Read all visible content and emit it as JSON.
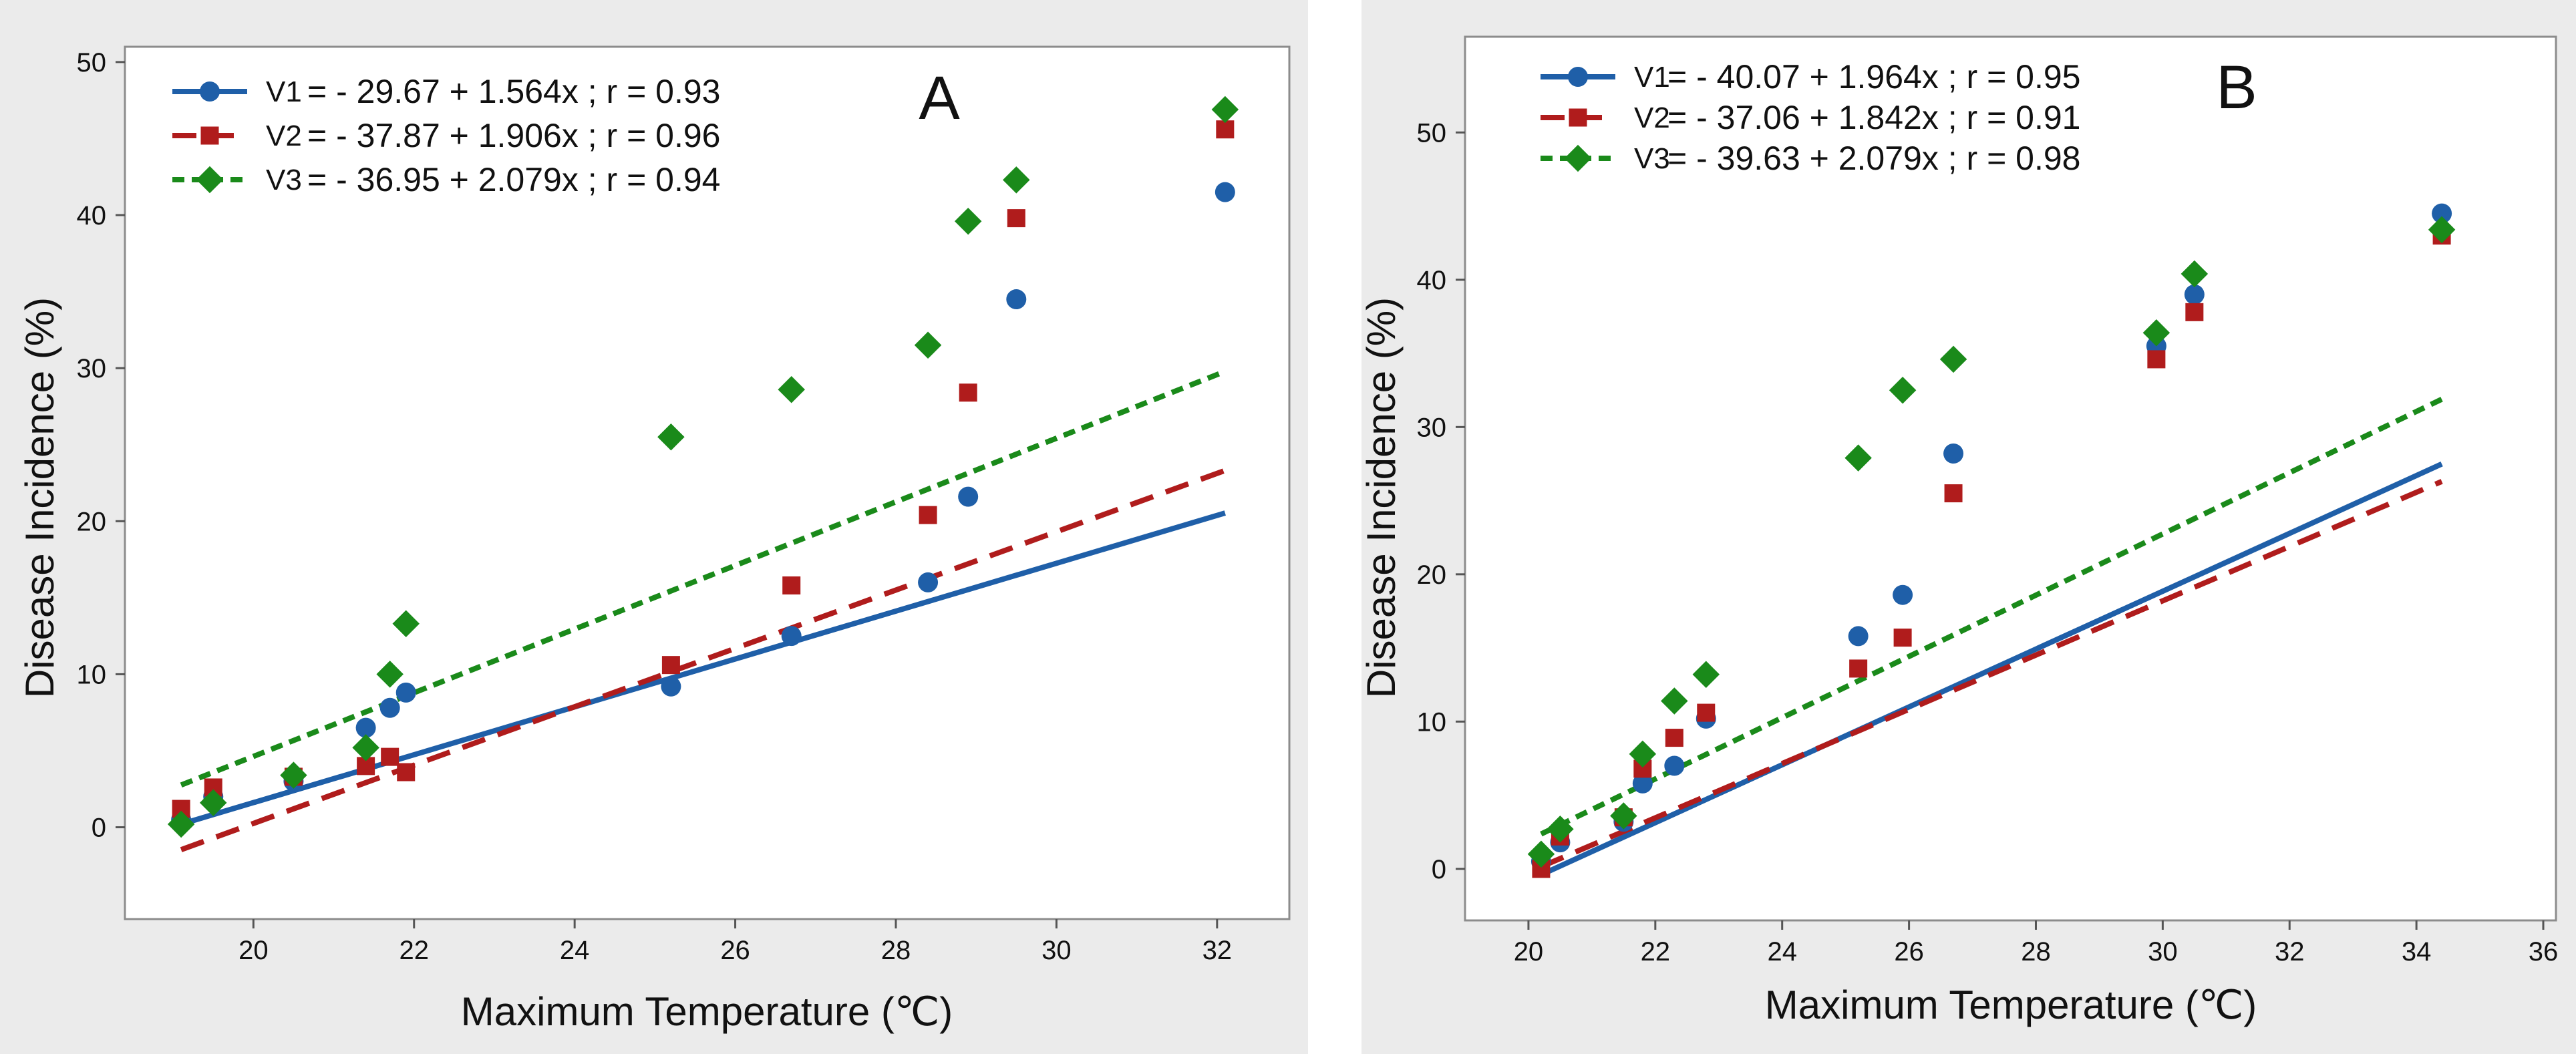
{
  "chart_data": [
    {
      "type": "scatter",
      "panel_label": "A",
      "xlabel": "Maximum Temperature (℃)",
      "ylabel": "Disease Incidence (%)",
      "xlim": [
        18.4,
        32.9
      ],
      "ylim": [
        -6,
        51
      ],
      "xticks": [
        20,
        22,
        24,
        26,
        28,
        30,
        32
      ],
      "yticks": [
        0,
        10,
        20,
        30,
        40,
        50
      ],
      "grid": false,
      "legend_position": "top-left",
      "series": [
        {
          "name": "V1",
          "equation": "= - 29.67 + 1.564x ; r = 0.93",
          "intercept": -29.67,
          "slope": 1.564,
          "color": "#1f5fa8",
          "marker": "circle",
          "line_style": "solid",
          "fit_range": [
            19.1,
            32.1
          ],
          "x": [
            19.1,
            19.5,
            20.5,
            21.4,
            21.7,
            21.9,
            25.2,
            26.7,
            28.4,
            28.9,
            29.5,
            32.1
          ],
          "y": [
            0.5,
            2.0,
            3.0,
            6.5,
            7.8,
            8.8,
            9.2,
            12.5,
            16.0,
            21.6,
            34.5,
            41.5
          ]
        },
        {
          "name": "V2",
          "equation": "= - 37.87 + 1.906x ; r = 0.96",
          "intercept": -37.87,
          "slope": 1.906,
          "color": "#b01c1c",
          "marker": "square",
          "line_style": "dashed",
          "fit_range": [
            19.1,
            32.1
          ],
          "x": [
            19.1,
            19.5,
            20.5,
            21.4,
            21.7,
            21.9,
            25.2,
            26.7,
            28.4,
            28.9,
            29.5,
            32.1
          ],
          "y": [
            1.2,
            2.6,
            3.3,
            4.0,
            4.6,
            3.6,
            10.6,
            15.8,
            20.4,
            28.4,
            39.8,
            45.6
          ]
        },
        {
          "name": "V3",
          "equation": "= - 36.95 + 2.079x ; r = 0.94",
          "intercept": -36.95,
          "slope": 2.079,
          "color": "#1a8a1a",
          "marker": "diamond",
          "line_style": "dotted",
          "fit_range": [
            19.1,
            32.1
          ],
          "x": [
            19.1,
            19.5,
            20.5,
            21.4,
            21.7,
            21.9,
            25.2,
            26.7,
            28.4,
            28.9,
            29.5,
            32.1
          ],
          "y": [
            0.2,
            1.6,
            3.4,
            5.2,
            10.0,
            13.3,
            25.5,
            28.6,
            31.5,
            39.6,
            42.3,
            46.9
          ]
        }
      ]
    },
    {
      "type": "scatter",
      "panel_label": "B",
      "xlabel": "Maximum Temperature (℃)",
      "ylabel": "Disease Incidence (%)",
      "xlim": [
        19.0,
        36.2
      ],
      "ylim": [
        -3.5,
        56.5
      ],
      "xticks": [
        20,
        22,
        24,
        26,
        28,
        30,
        32,
        34,
        36
      ],
      "yticks": [
        0,
        10,
        20,
        30,
        40,
        50
      ],
      "grid": false,
      "legend_position": "top-left",
      "series": [
        {
          "name": "V1",
          "equation": "= - 40.07 + 1.964x ; r = 0.95",
          "intercept": -40.07,
          "slope": 1.964,
          "color": "#1f5fa8",
          "marker": "circle",
          "line_style": "solid",
          "fit_range": [
            20.2,
            34.4
          ],
          "x": [
            20.2,
            20.5,
            21.5,
            21.8,
            22.3,
            22.8,
            25.2,
            25.9,
            26.7,
            29.9,
            30.5,
            34.4
          ],
          "y": [
            0.5,
            1.8,
            3.2,
            5.8,
            7.0,
            10.2,
            15.8,
            18.6,
            28.2,
            35.5,
            39.0,
            44.5
          ]
        },
        {
          "name": "V2",
          "equation": "= - 37.06 + 1.842x ; r = 0.91",
          "intercept": -37.06,
          "slope": 1.842,
          "color": "#b01c1c",
          "marker": "square",
          "line_style": "dashed",
          "fit_range": [
            20.2,
            34.4
          ],
          "x": [
            20.2,
            20.5,
            21.5,
            21.8,
            22.3,
            22.8,
            25.2,
            25.9,
            26.7,
            29.9,
            30.5,
            34.4
          ],
          "y": [
            0.0,
            2.2,
            3.5,
            6.8,
            8.9,
            10.6,
            13.6,
            15.7,
            25.5,
            34.6,
            37.8,
            43.0
          ]
        },
        {
          "name": "V3",
          "equation": "= - 39.63 + 2.079x ; r = 0.98",
          "intercept": -39.63,
          "slope": 2.079,
          "color": "#1a8a1a",
          "marker": "diamond",
          "line_style": "dotted",
          "fit_range": [
            20.2,
            34.4
          ],
          "x": [
            20.2,
            20.5,
            21.5,
            21.8,
            22.3,
            22.8,
            25.2,
            25.9,
            26.7,
            29.9,
            30.5,
            34.4
          ],
          "y": [
            1.0,
            2.7,
            3.6,
            7.8,
            11.4,
            13.2,
            27.9,
            32.5,
            34.6,
            36.4,
            40.4,
            43.4
          ]
        }
      ]
    }
  ]
}
